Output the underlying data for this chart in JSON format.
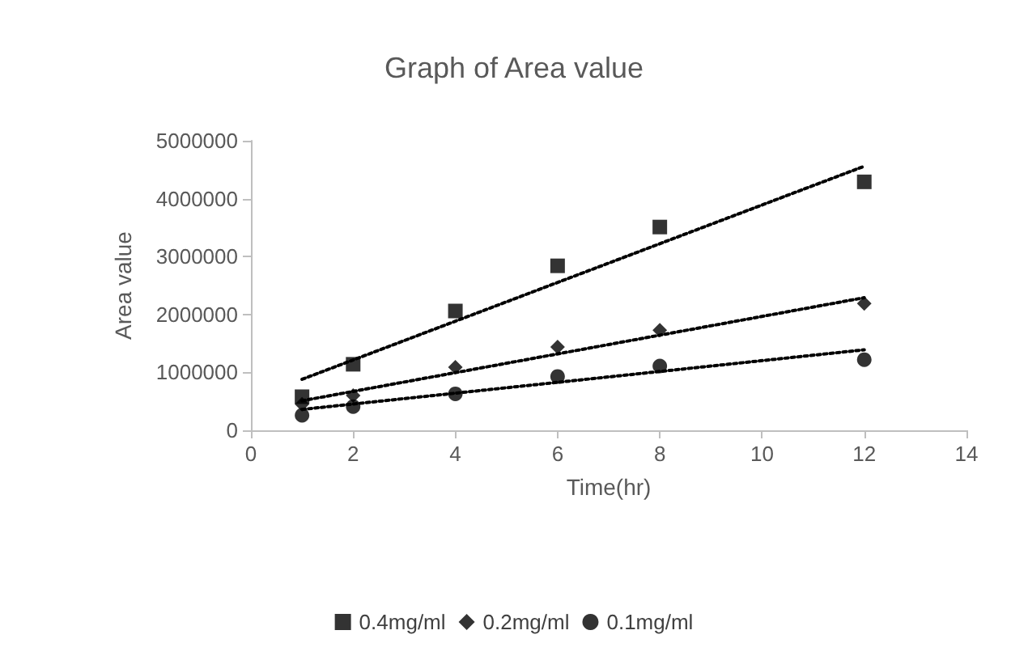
{
  "chart_data": {
    "type": "scatter",
    "title": "Graph of Area value",
    "xlabel": "Time(hr)",
    "ylabel": "Area value",
    "xlim": [
      0,
      14
    ],
    "xticks": [
      0,
      2,
      4,
      6,
      8,
      10,
      12,
      14
    ],
    "ylim": [
      0,
      5000000
    ],
    "yticks": [
      0,
      1000000,
      2000000,
      3000000,
      4000000,
      5000000
    ],
    "grid": false,
    "legend": "bottom",
    "series": [
      {
        "name": "0.4mg/ml",
        "color": "#000000",
        "marker": "square",
        "x": [
          1,
          2,
          4,
          6,
          8,
          12
        ],
        "values": [
          580000,
          1140000,
          2060000,
          2840000,
          3510000,
          4290000
        ]
      },
      {
        "name": "0.2mg/ml",
        "color": "#000000",
        "marker": "diamond",
        "x": [
          1,
          2,
          4,
          6,
          8,
          12
        ],
        "values": [
          450000,
          600000,
          1090000,
          1440000,
          1730000,
          2190000
        ]
      },
      {
        "name": "0.1mg/ml",
        "color": "#000000",
        "marker": "circle",
        "x": [
          1,
          2,
          4,
          6,
          8,
          12
        ],
        "values": [
          260000,
          410000,
          630000,
          930000,
          1110000,
          1220000
        ]
      },
      {
        "type": "line",
        "color": "#000000",
        "marker": "none",
        "line_style": "dotted",
        "x": [
          1,
          12
        ],
        "values": [
          880000,
          4560000
        ]
      },
      {
        "type": "line",
        "color": "#000000",
        "marker": "none",
        "line_style": "dotted",
        "x": [
          1,
          12
        ],
        "values": [
          510000,
          2290000
        ]
      },
      {
        "type": "line",
        "color": "#000000",
        "marker": "none",
        "line_style": "dotted",
        "x": [
          1,
          12
        ],
        "values": [
          360000,
          1390000
        ]
      }
    ]
  }
}
